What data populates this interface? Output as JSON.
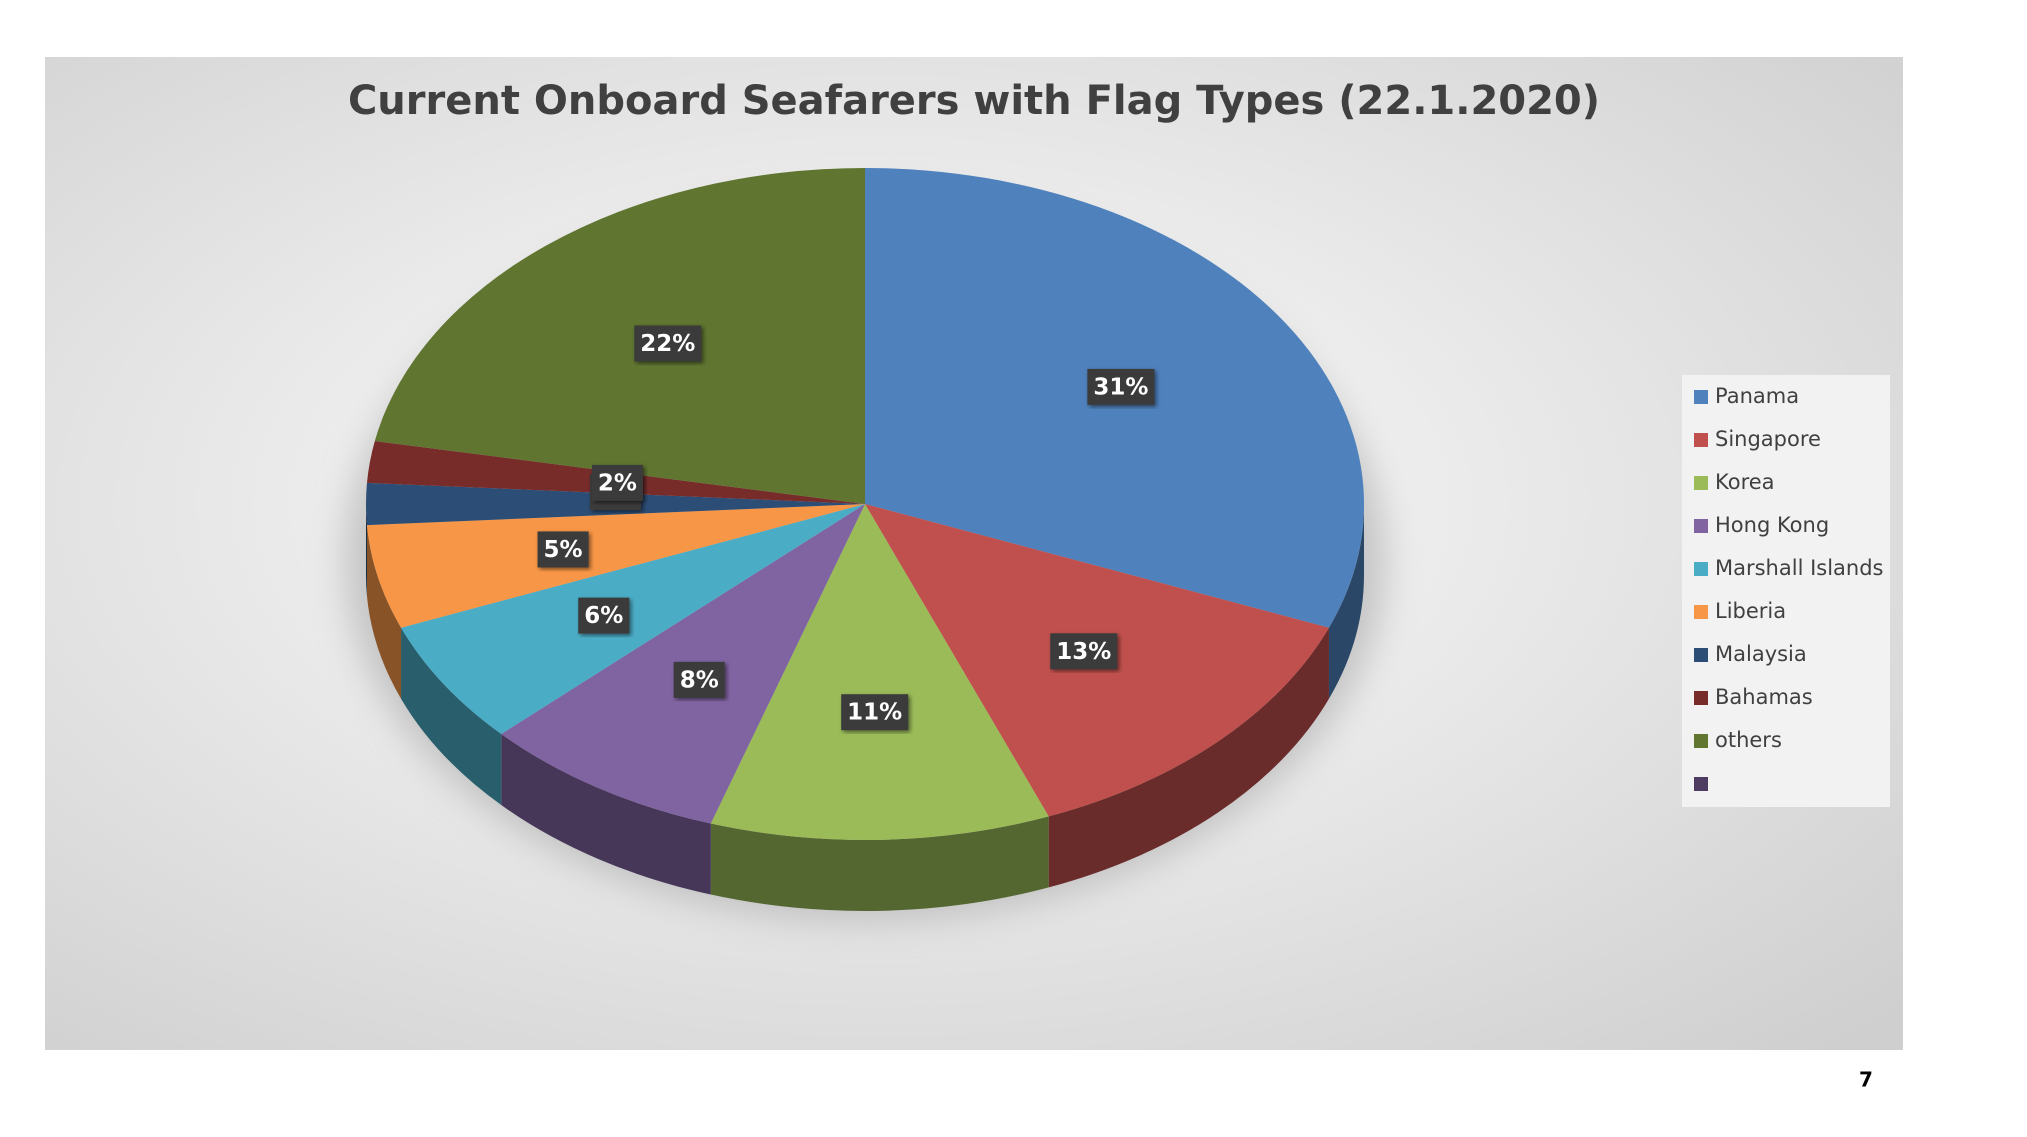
{
  "chart_data": {
    "type": "pie",
    "title": "Current Onboard Seafarers with Flag Types (22.1.2020)",
    "categories": [
      "Panama",
      "Singapore",
      "Korea",
      "Hong Kong",
      "Marshall Islands",
      "Liberia",
      "Malaysia",
      "Bahamas",
      "others",
      null
    ],
    "values": [
      31,
      13,
      11,
      8,
      6,
      5,
      2,
      2,
      22,
      0
    ],
    "value_labels": [
      "31%",
      "13%",
      "11%",
      "8%",
      "6%",
      "5%",
      "2%",
      "2%",
      "22%",
      null
    ],
    "colors": [
      "#4f81bd",
      "#c0504d",
      "#9bbb59",
      "#8064a2",
      "#4bacc6",
      "#f79646",
      "#2c4d75",
      "#772c2a",
      "#5f7530",
      "#4d3b62"
    ],
    "legend": "right"
  },
  "page_number": "7"
}
